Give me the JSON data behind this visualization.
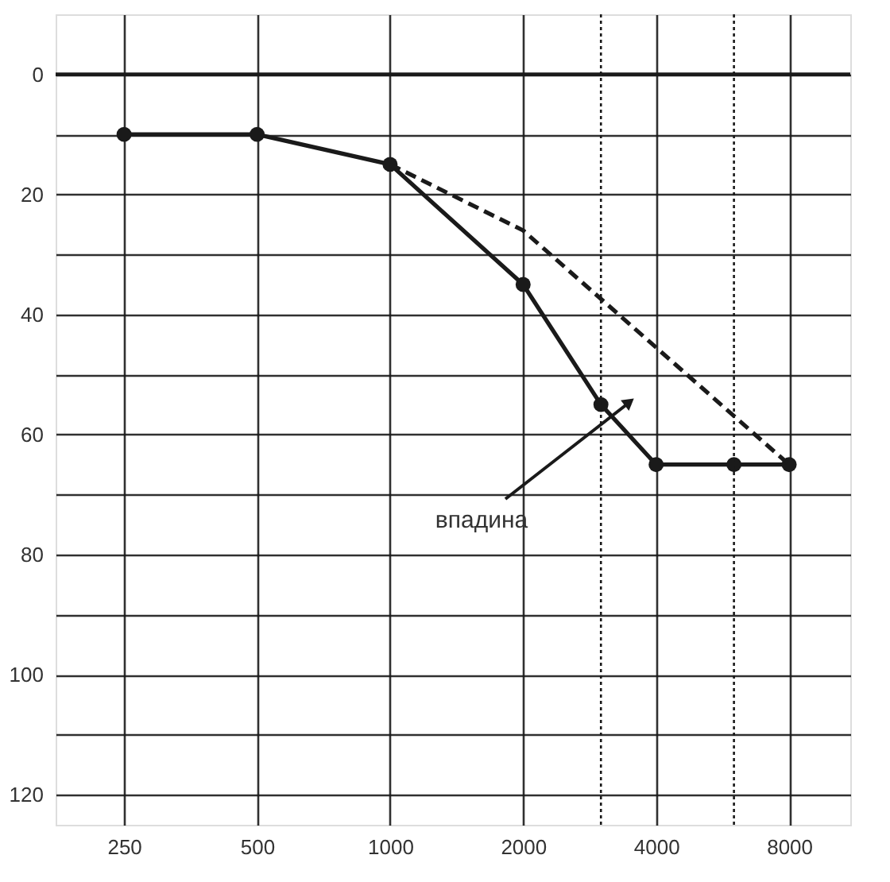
{
  "chart_data": {
    "type": "line",
    "log": "x",
    "xlim": [
      175,
      11000
    ],
    "xticks": [
      250,
      500,
      1000,
      2000,
      4000,
      8000
    ],
    "ylim": [
      125,
      -10
    ],
    "yticks": [
      0,
      {
        "value": 10,
        "label": null
      },
      20,
      {
        "value": 30,
        "label": null
      },
      40,
      {
        "value": 50,
        "label": null
      },
      60,
      {
        "value": 70,
        "label": null
      },
      80,
      {
        "value": 90,
        "label": null
      },
      100,
      {
        "value": 110,
        "label": null
      },
      120
    ],
    "grid": true,
    "series": [
      {
        "color": "#1a1a1a",
        "marker": "circle",
        "line_style": "solid",
        "x": [
          250,
          500,
          1000,
          2000,
          3000,
          4000,
          6000,
          8000
        ],
        "values": [
          10,
          10,
          15,
          35,
          55,
          65,
          65,
          65
        ]
      },
      {
        "color": "#1a1a1a",
        "marker": "none",
        "line_style": "dashed",
        "x": [
          1000,
          2000,
          8000
        ],
        "values": [
          15,
          26,
          65
        ]
      }
    ],
    "ref_lines": [
      {
        "axis": "y",
        "value": 0,
        "line_style": "solid"
      },
      {
        "axis": "x",
        "value": 3000,
        "line_style": "dotted"
      },
      {
        "axis": "x",
        "value": 6000,
        "line_style": "dotted"
      }
    ],
    "annotations": [
      "впадина"
    ]
  }
}
